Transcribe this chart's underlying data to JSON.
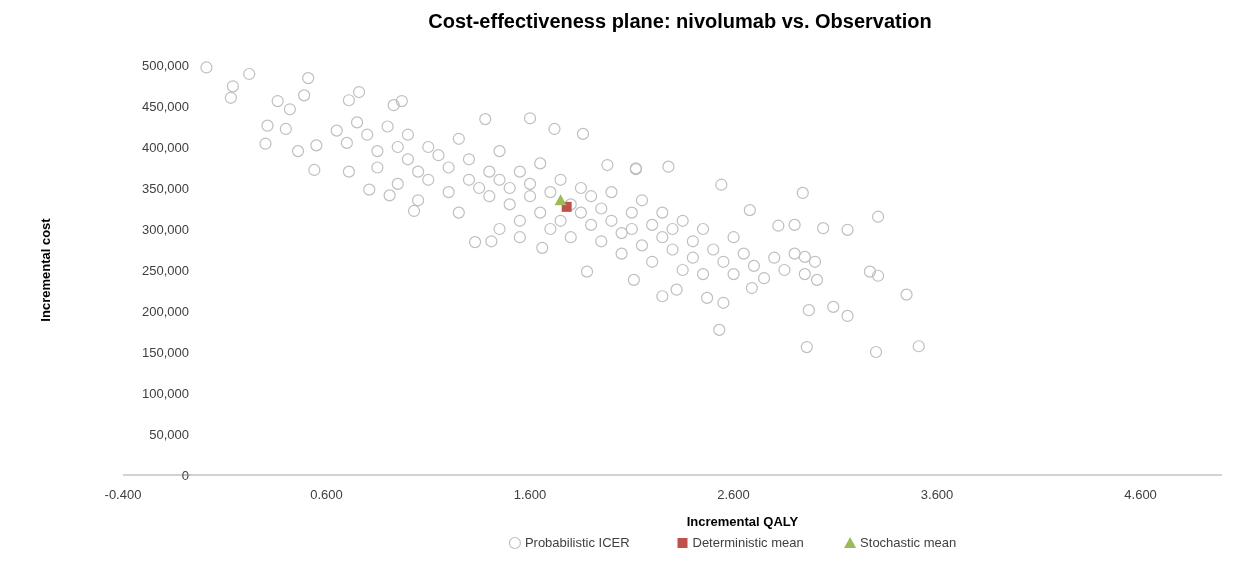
{
  "chart_data": {
    "type": "scatter",
    "title": "Cost-effectiveness plane: nivolumab vs. Observation",
    "xlabel": "Incremental QALY",
    "ylabel": "Incremental cost",
    "xlim": [
      -0.4,
      5.0
    ],
    "xticks": [
      {
        "value": -0.4,
        "label": "-0.400"
      },
      {
        "value": 0.6,
        "label": "0.600"
      },
      {
        "value": 1.6,
        "label": "1.600"
      },
      {
        "value": 2.6,
        "label": "2.600"
      },
      {
        "value": 3.6,
        "label": "3.600"
      },
      {
        "value": 4.6,
        "label": "4.600"
      }
    ],
    "ylim": [
      0,
      500000
    ],
    "yticks": [
      0,
      {
        "value": 50000,
        "label": "50,000"
      },
      {
        "value": 100000,
        "label": "100,000"
      },
      {
        "value": 150000,
        "label": "150,000"
      },
      {
        "value": 200000,
        "label": "200,000"
      },
      {
        "value": 250000,
        "label": "250,000"
      },
      {
        "value": 300000,
        "label": "300,000"
      },
      {
        "value": 350000,
        "label": "350,000"
      },
      {
        "value": 400000,
        "label": "400,000"
      },
      {
        "value": 450000,
        "label": "450,000"
      },
      {
        "value": 500000,
        "label": "500,000"
      }
    ],
    "grid": false,
    "legend": "bottom",
    "series": [
      {
        "name": "Probabilistic ICER",
        "color": "#bfbfbf",
        "marker": "circle",
        "x": [
          0.01,
          0.14,
          0.13,
          0.22,
          0.3,
          0.31,
          0.36,
          0.42,
          0.51,
          0.49,
          0.54,
          0.46,
          0.4,
          0.55,
          0.76,
          0.71,
          0.93,
          0.97,
          0.71,
          0.81,
          0.91,
          1.03,
          1.33,
          1.41,
          1.38,
          1.6,
          1.72,
          1.86,
          1.66,
          1.88,
          2.12,
          1.98,
          2.12,
          2.28,
          2.54,
          2.94,
          3.31,
          3.04,
          3.16,
          2.68,
          2.9,
          2.82,
          3.27,
          3.31,
          3.45,
          2.97,
          3.09,
          3.16,
          2.53,
          2.96,
          3.3,
          3.51,
          2.55,
          2.47,
          2.25,
          2.32,
          2.11,
          2.69,
          3.01,
          2.95,
          0.65,
          0.7,
          0.75,
          0.8,
          0.85,
          0.9,
          0.95,
          1.0,
          1.0,
          1.05,
          1.1,
          1.1,
          1.15,
          1.2,
          1.2,
          1.25,
          1.3,
          1.3,
          1.35,
          1.4,
          1.4,
          1.45,
          1.45,
          1.5,
          1.5,
          1.55,
          1.55,
          1.6,
          1.6,
          1.65,
          1.65,
          1.7,
          1.7,
          1.75,
          1.75,
          1.8,
          1.8,
          1.85,
          1.85,
          1.9,
          1.9,
          1.95,
          1.95,
          2.0,
          2.0,
          2.05,
          2.05,
          2.1,
          2.1,
          2.15,
          2.15,
          2.2,
          2.2,
          2.25,
          2.25,
          2.3,
          2.3,
          2.35,
          2.35,
          2.4,
          2.4,
          2.45,
          2.45,
          2.5,
          2.55,
          2.6,
          2.6,
          2.65,
          2.7,
          2.75,
          2.8,
          2.85,
          2.9,
          2.95,
          3.0,
          1.25,
          1.05,
          0.95,
          0.85,
          1.55,
          1.45
        ],
        "values": [
          497000,
          474000,
          460000,
          489000,
          404000,
          426000,
          456000,
          446000,
          484000,
          463000,
          372000,
          395000,
          422000,
          402000,
          467000,
          457000,
          451000,
          456000,
          370000,
          348000,
          341000,
          322000,
          284000,
          285000,
          434000,
          435000,
          422000,
          416000,
          277000,
          248000,
          374000,
          378000,
          373000,
          376000,
          354000,
          344000,
          315000,
          301000,
          299000,
          323000,
          305000,
          304000,
          248000,
          243000,
          220000,
          201000,
          205000,
          194000,
          177000,
          156000,
          150000,
          157000,
          210000,
          216000,
          218000,
          226000,
          238000,
          228000,
          238000,
          266000,
          420000,
          405000,
          430000,
          415000,
          395000,
          425000,
          400000,
          385000,
          415000,
          370000,
          400000,
          360000,
          390000,
          375000,
          345000,
          410000,
          360000,
          385000,
          350000,
          370000,
          340000,
          360000,
          395000,
          350000,
          330000,
          370000,
          310000,
          355000,
          340000,
          320000,
          380000,
          345000,
          300000,
          360000,
          310000,
          330000,
          290000,
          350000,
          320000,
          305000,
          340000,
          285000,
          325000,
          310000,
          345000,
          295000,
          270000,
          320000,
          300000,
          280000,
          335000,
          305000,
          260000,
          290000,
          320000,
          275000,
          300000,
          250000,
          310000,
          285000,
          265000,
          300000,
          245000,
          275000,
          260000,
          290000,
          245000,
          270000,
          255000,
          240000,
          265000,
          250000,
          270000,
          245000,
          260000,
          320000,
          335000,
          355000,
          375000,
          290000,
          300000
        ]
      },
      {
        "name": "Deterministic mean",
        "color": "#c0504d",
        "marker": "square",
        "x": [
          1.78
        ],
        "values": [
          327000
        ]
      },
      {
        "name": "Stochastic mean",
        "color": "#9bbb59",
        "marker": "triangle",
        "x": [
          1.75
        ],
        "values": [
          335000
        ]
      }
    ]
  }
}
